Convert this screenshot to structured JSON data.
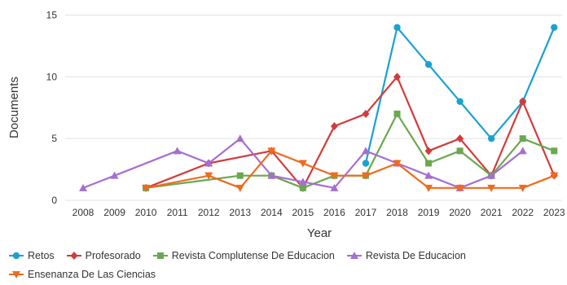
{
  "chart_data": {
    "type": "line",
    "xlabel": "Year",
    "ylabel": "Documents",
    "x": [
      2008,
      2009,
      2010,
      2011,
      2012,
      2013,
      2014,
      2015,
      2016,
      2017,
      2018,
      2019,
      2020,
      2021,
      2022,
      2023
    ],
    "x_ticks": [
      "2008",
      "2009",
      "2010",
      "2011",
      "2012",
      "2013",
      "2014",
      "2015",
      "2016",
      "2017",
      "2018",
      "2019",
      "2020",
      "2021",
      "2022",
      "2023"
    ],
    "ylim": [
      0,
      15
    ],
    "y_ticks": [
      "0",
      "5",
      "10",
      "15"
    ],
    "grid": "horizontal",
    "legend_position": "bottom",
    "series": [
      {
        "name": "Retos",
        "color": "#1aa1d0",
        "marker": "circle",
        "points": [
          [
            2017,
            3
          ],
          [
            2018,
            14
          ],
          [
            2019,
            11
          ],
          [
            2020,
            8
          ],
          [
            2021,
            5
          ],
          [
            2022,
            8
          ],
          [
            2023,
            14
          ]
        ]
      },
      {
        "name": "Profesorado",
        "color": "#d33b3b",
        "marker": "diamond",
        "points": [
          [
            2010,
            1
          ],
          [
            2012,
            3
          ],
          [
            2014,
            4
          ],
          [
            2015,
            1
          ],
          [
            2016,
            6
          ],
          [
            2017,
            7
          ],
          [
            2018,
            10
          ],
          [
            2019,
            4
          ],
          [
            2020,
            5
          ],
          [
            2021,
            2
          ],
          [
            2022,
            8
          ],
          [
            2023,
            2
          ]
        ]
      },
      {
        "name": "Revista Complutense De Educacion",
        "color": "#6aa84f",
        "marker": "square",
        "points": [
          [
            2010,
            1
          ],
          [
            2013,
            2
          ],
          [
            2014,
            2
          ],
          [
            2015,
            1
          ],
          [
            2016,
            2
          ],
          [
            2017,
            2
          ],
          [
            2018,
            7
          ],
          [
            2019,
            3
          ],
          [
            2020,
            4
          ],
          [
            2021,
            2
          ],
          [
            2022,
            5
          ],
          [
            2023,
            4
          ]
        ]
      },
      {
        "name": "Revista De Educacion",
        "color": "#a56fd1",
        "marker": "triangle-up",
        "points": [
          [
            2008,
            1
          ],
          [
            2009,
            2
          ],
          [
            2011,
            4
          ],
          [
            2012,
            3
          ],
          [
            2013,
            5
          ],
          [
            2014,
            2
          ],
          [
            2015,
            1.5
          ],
          [
            2016,
            1
          ],
          [
            2017,
            4
          ],
          [
            2018,
            3
          ],
          [
            2019,
            2
          ],
          [
            2020,
            1
          ],
          [
            2021,
            2
          ],
          [
            2022,
            4
          ]
        ]
      },
      {
        "name": "Ensenanza De Las Ciencias",
        "color": "#ee6b1f",
        "marker": "triangle-down",
        "points": [
          [
            2010,
            1
          ],
          [
            2012,
            2
          ],
          [
            2013,
            1
          ],
          [
            2014,
            4
          ],
          [
            2015,
            3
          ],
          [
            2016,
            2
          ],
          [
            2017,
            2
          ],
          [
            2018,
            3
          ],
          [
            2019,
            1
          ],
          [
            2020,
            1
          ],
          [
            2021,
            1
          ],
          [
            2022,
            1
          ],
          [
            2023,
            2
          ]
        ]
      }
    ]
  }
}
